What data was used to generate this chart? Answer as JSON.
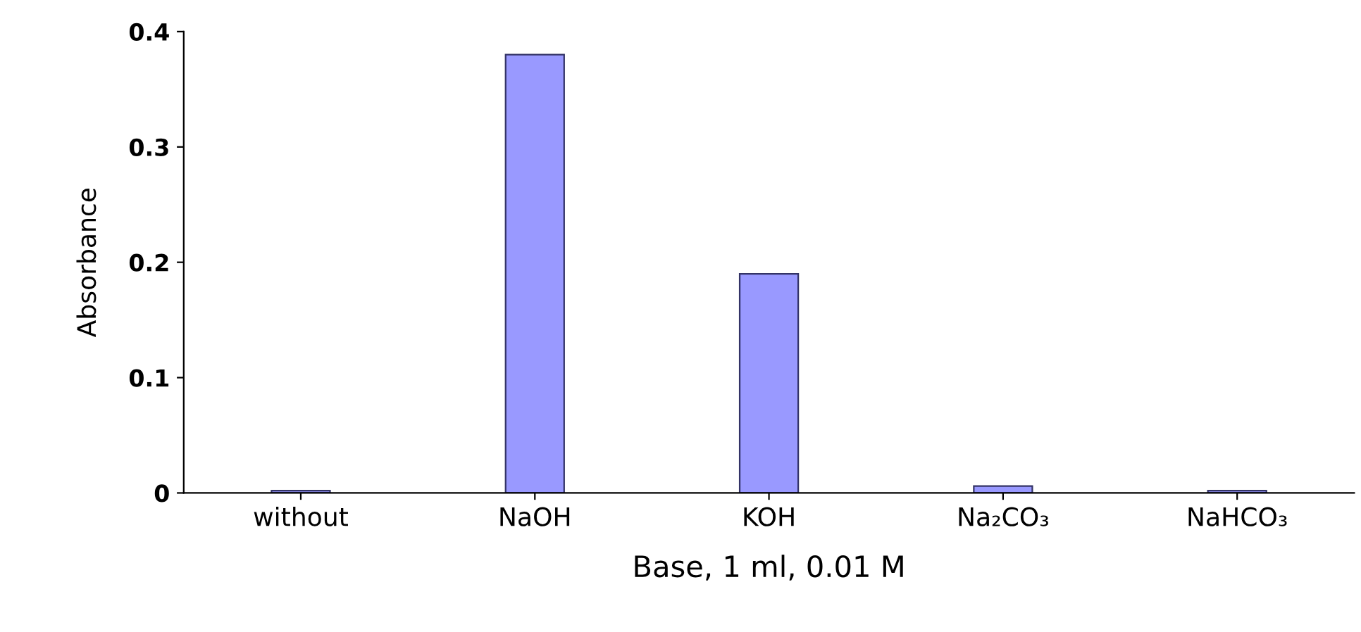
{
  "chart_data": {
    "type": "bar",
    "xlabel": "Base, 1 ml, 0.01 M",
    "ylabel": "Absorbance",
    "categories": [
      "without",
      "NaOH",
      "KOH",
      "Na₂CO₃",
      "NaHCO₃"
    ],
    "values": [
      0.002,
      0.38,
      0.19,
      0.006,
      0.002
    ],
    "color": "#9999ff",
    "ylim": [
      0,
      0.4
    ],
    "yticks": [
      0,
      0.1,
      0.2,
      0.3,
      0.4
    ],
    "grid": false
  }
}
